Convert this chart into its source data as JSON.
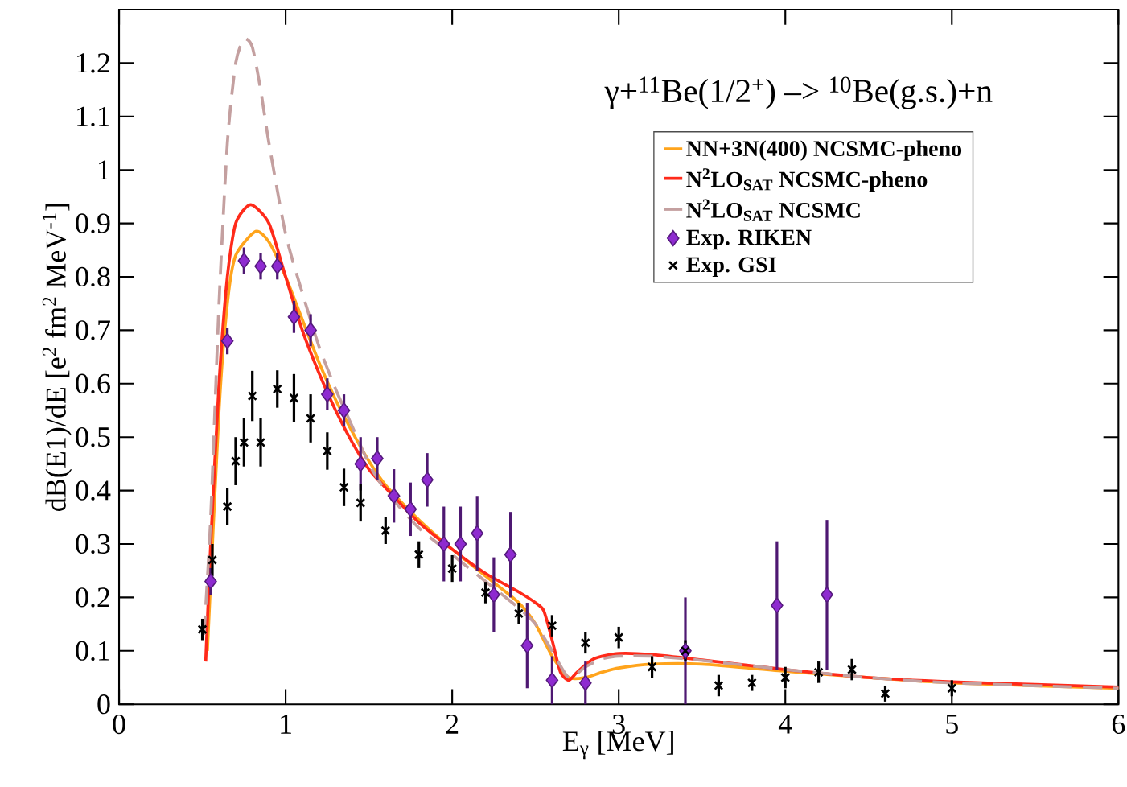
{
  "chart_data": {
    "type": "line",
    "annotations": [
      "γ+$^{11}$Be(1/2$^{+}$) –> $^{10}$Be(g.s.)+n"
    ],
    "xlabel": "E$_{γ}$ [MeV]",
    "ylabel": "dB(E1)/dE  [e$^{2}$ fm$^{2}$ MeV$^{-1}$]",
    "xlim": [
      0,
      6
    ],
    "ylim": [
      0,
      1.3
    ],
    "xticks": [
      0,
      1,
      2,
      3,
      4,
      5,
      6
    ],
    "yticks": [
      0,
      0.1,
      0.2,
      0.3,
      0.4,
      0.5,
      0.6,
      0.7,
      0.8,
      0.9,
      1,
      1.1,
      1.2
    ],
    "grid": false,
    "legend": "top right",
    "series": [
      {
        "name": "NN+3N(400)  NCSMC-pheno",
        "type": "line",
        "color": "#ffa41c",
        "marker": "none",
        "line_style": "solid",
        "x": [
          0.53,
          0.6,
          0.65,
          0.7,
          0.82,
          0.9,
          1.0,
          1.1,
          1.2,
          1.3,
          1.4,
          1.5,
          1.6,
          1.8,
          2.0,
          2.2,
          2.4,
          2.5,
          2.6,
          2.7,
          2.8,
          2.9,
          3.0,
          3.2,
          3.5,
          4.0,
          4.5,
          5.0,
          6.0
        ],
        "values": [
          0.1,
          0.55,
          0.75,
          0.84,
          0.885,
          0.865,
          0.8,
          0.72,
          0.64,
          0.57,
          0.51,
          0.455,
          0.41,
          0.345,
          0.29,
          0.24,
          0.19,
          0.15,
          0.09,
          0.05,
          0.05,
          0.06,
          0.068,
          0.075,
          0.075,
          0.062,
          0.05,
          0.04,
          0.03
        ]
      },
      {
        "name": "N$^{2}$LO$_{SAT}$      NCSMC-pheno",
        "type": "line",
        "color": "#ff2a1a",
        "marker": "none",
        "line_style": "solid",
        "x": [
          0.52,
          0.55,
          0.6,
          0.65,
          0.7,
          0.79,
          0.9,
          1.0,
          1.1,
          1.2,
          1.3,
          1.4,
          1.5,
          1.6,
          1.8,
          2.0,
          2.2,
          2.4,
          2.5,
          2.55,
          2.6,
          2.65,
          2.7,
          2.75,
          2.85,
          3.0,
          3.2,
          3.5,
          4.0,
          4.5,
          5.0,
          5.5,
          6.0
        ],
        "values": [
          0.08,
          0.3,
          0.6,
          0.8,
          0.9,
          0.935,
          0.9,
          0.8,
          0.7,
          0.62,
          0.55,
          0.49,
          0.44,
          0.405,
          0.34,
          0.29,
          0.245,
          0.21,
          0.19,
          0.175,
          0.12,
          0.06,
          0.045,
          0.06,
          0.085,
          0.095,
          0.093,
          0.083,
          0.065,
          0.05,
          0.042,
          0.037,
          0.032
        ]
      },
      {
        "name": "N$^{2}$LO$_{SAT}$            NCSMC",
        "type": "line",
        "color": "#c4a0a0",
        "marker": "none",
        "line_style": "dashed",
        "x": [
          0.51,
          0.55,
          0.6,
          0.65,
          0.7,
          0.75,
          0.8,
          0.85,
          0.9,
          1.0,
          1.1,
          1.2,
          1.3,
          1.4,
          1.5,
          1.6,
          1.8,
          2.0,
          2.2,
          2.4,
          2.5,
          2.6,
          2.7,
          2.8,
          2.9,
          3.0,
          3.2,
          3.5,
          4.0,
          4.5,
          5.0,
          6.0
        ],
        "values": [
          0.13,
          0.35,
          0.75,
          1.05,
          1.2,
          1.245,
          1.23,
          1.15,
          1.05,
          0.88,
          0.77,
          0.67,
          0.59,
          0.52,
          0.45,
          0.4,
          0.33,
          0.28,
          0.23,
          0.18,
          0.15,
          0.1,
          0.05,
          0.07,
          0.085,
          0.09,
          0.09,
          0.082,
          0.065,
          0.05,
          0.04,
          0.03
        ]
      },
      {
        "name": "Exp. RIKEN",
        "type": "scatter",
        "color": "#8e2bd0",
        "marker": "diamond",
        "x": [
          0.55,
          0.65,
          0.75,
          0.85,
          0.95,
          1.05,
          1.15,
          1.25,
          1.35,
          1.45,
          1.55,
          1.65,
          1.75,
          1.85,
          1.95,
          2.05,
          2.15,
          2.25,
          2.35,
          2.45,
          2.6,
          2.8,
          3.4,
          3.95,
          4.25
        ],
        "values": [
          0.23,
          0.68,
          0.83,
          0.82,
          0.82,
          0.725,
          0.7,
          0.58,
          0.55,
          0.45,
          0.46,
          0.39,
          0.365,
          0.42,
          0.3,
          0.3,
          0.32,
          0.205,
          0.28,
          0.11,
          0.045,
          0.04,
          0.1,
          0.185,
          0.205
        ],
        "errors": [
          0.025,
          0.025,
          0.025,
          0.025,
          0.025,
          0.03,
          0.03,
          0.03,
          0.03,
          0.05,
          0.04,
          0.05,
          0.05,
          0.05,
          0.07,
          0.07,
          0.07,
          0.07,
          0.08,
          0.08,
          0.045,
          0.04,
          0.1,
          0.12,
          0.14
        ]
      },
      {
        "name": "Exp. GSI",
        "type": "scatter",
        "color": "#000000",
        "marker": "cross",
        "x": [
          0.5,
          0.56,
          0.65,
          0.7,
          0.75,
          0.8,
          0.85,
          0.95,
          1.05,
          1.15,
          1.25,
          1.35,
          1.45,
          1.6,
          1.8,
          2.0,
          2.2,
          2.4,
          2.6,
          2.8,
          3.0,
          3.2,
          3.4,
          3.6,
          3.8,
          4.0,
          4.2,
          4.4,
          4.6,
          5.0
        ],
        "values": [
          0.14,
          0.27,
          0.37,
          0.455,
          0.49,
          0.577,
          0.49,
          0.59,
          0.573,
          0.535,
          0.474,
          0.406,
          0.377,
          0.325,
          0.28,
          0.254,
          0.209,
          0.17,
          0.147,
          0.115,
          0.125,
          0.07,
          0.1,
          0.035,
          0.04,
          0.05,
          0.06,
          0.065,
          0.02,
          0.03
        ],
        "errors": [
          0.02,
          0.03,
          0.035,
          0.045,
          0.045,
          0.047,
          0.045,
          0.035,
          0.045,
          0.045,
          0.035,
          0.035,
          0.035,
          0.025,
          0.025,
          0.025,
          0.02,
          0.02,
          0.02,
          0.02,
          0.02,
          0.02,
          0.02,
          0.02,
          0.015,
          0.02,
          0.02,
          0.02,
          0.015,
          0.015
        ]
      }
    ]
  }
}
